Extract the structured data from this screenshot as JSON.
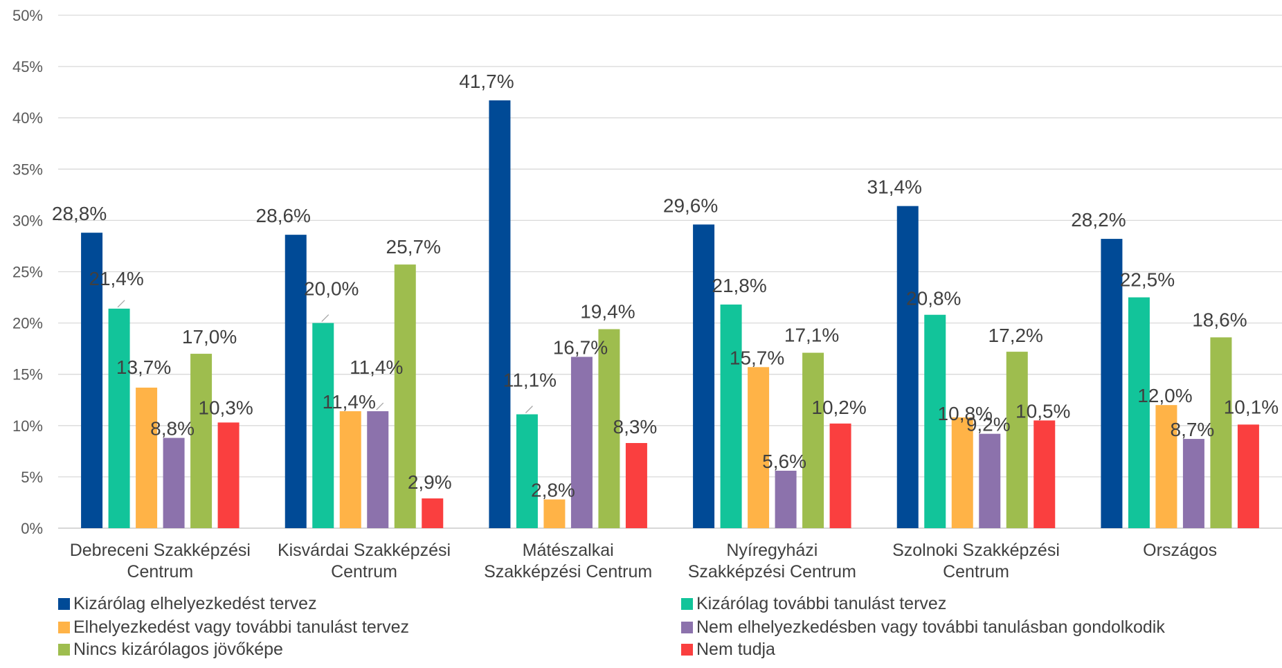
{
  "chart_data": {
    "type": "bar",
    "categories": [
      [
        "Debreceni Szakképzési",
        "Centrum"
      ],
      [
        "Kisvárdai Szakképzési",
        "Centrum"
      ],
      [
        "Mátészalkai",
        "Szakképzési Centrum"
      ],
      [
        "Nyíregyházi",
        "Szakképzési Centrum"
      ],
      [
        "Szolnoki Szakképzési",
        "Centrum"
      ],
      [
        "Országos"
      ]
    ],
    "series": [
      {
        "name": "Kizárólag elhelyezkedést tervez",
        "color": "#004a96",
        "values": [
          28.8,
          28.6,
          41.7,
          29.6,
          31.4,
          28.2
        ],
        "labels": [
          "28,8%",
          "28,6%",
          "41,7%",
          "29,6%",
          "31,4%",
          "28,2%"
        ]
      },
      {
        "name": "Kizárólag további tanulást tervez",
        "color": "#12c49a",
        "values": [
          21.4,
          20.0,
          11.1,
          21.8,
          20.8,
          22.5
        ],
        "labels": [
          "21,4%",
          "20,0%",
          "11,1%",
          "21,8%",
          "20,8%",
          "22,5%"
        ]
      },
      {
        "name": "Elhelyezkedést vagy további tanulást tervez",
        "color": "#ffb347",
        "values": [
          13.7,
          11.4,
          2.8,
          15.7,
          10.8,
          12.0
        ],
        "labels": [
          "13,7%",
          "11,4%",
          "2,8%",
          "15,7%",
          "10,8%",
          "12,0%"
        ]
      },
      {
        "name": "Nem elhelyezkedésben vagy további tanulásban gondolkodik",
        "color": "#8c72ac",
        "values": [
          8.8,
          11.4,
          16.7,
          5.6,
          9.2,
          8.7
        ],
        "labels": [
          "8,8%",
          "11,4%",
          "16,7%",
          "5,6%",
          "9,2%",
          "8,7%"
        ]
      },
      {
        "name": "Nincs kizárólagos jövőképe",
        "color": "#9ebd4e",
        "values": [
          17.0,
          25.7,
          19.4,
          17.1,
          17.2,
          18.6
        ],
        "labels": [
          "17,0%",
          "25,7%",
          "19,4%",
          "17,1%",
          "17,2%",
          "18,6%"
        ]
      },
      {
        "name": "Nem tudja",
        "color": "#fa3f3f",
        "values": [
          10.3,
          2.9,
          8.3,
          10.2,
          10.5,
          10.1
        ],
        "labels": [
          "10,3%",
          "2,9%",
          "8,3%",
          "10,2%",
          "10,5%",
          "10,1%"
        ]
      }
    ],
    "y_ticks": [
      "0%",
      "5%",
      "10%",
      "15%",
      "20%",
      "25%",
      "30%",
      "35%",
      "40%",
      "45%",
      "50%"
    ],
    "ylim": [
      0,
      50
    ],
    "grid": true,
    "legend_position": "bottom"
  }
}
